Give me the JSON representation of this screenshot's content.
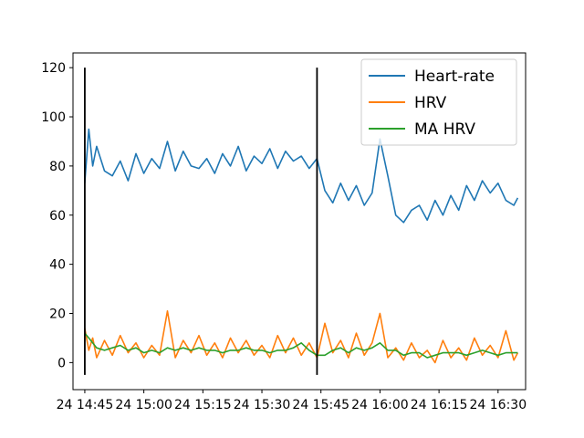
{
  "chart_data": {
    "type": "line",
    "title": "",
    "xlabel": "",
    "ylabel": "",
    "x_domain": [
      "24 14:42",
      "24 16:37"
    ],
    "ylim": [
      -11,
      126
    ],
    "grid": false,
    "legend": {
      "location": "upper right",
      "entries": [
        "Heart-rate",
        "HRV",
        "MA HRV"
      ]
    },
    "x_ticks": [
      {
        "at": "24 14:45",
        "label": "24 14:45"
      },
      {
        "at": "24 15:00",
        "label": "24 15:00"
      },
      {
        "at": "24 15:15",
        "label": "24 15:15"
      },
      {
        "at": "24 15:30",
        "label": "24 15:30"
      },
      {
        "at": "24 15:45",
        "label": "24 15:45"
      },
      {
        "at": "24 16:00",
        "label": "24 16:00"
      },
      {
        "at": "24 16:15",
        "label": "24 16:15"
      },
      {
        "at": "24 16:30",
        "label": "24 16:30"
      }
    ],
    "y_ticks": [
      0,
      20,
      40,
      60,
      80,
      100,
      120
    ],
    "vertical_markers": [
      {
        "x": "24 14:45",
        "ymin": -5,
        "ymax": 120,
        "color": "#000000"
      },
      {
        "x": "24 15:44",
        "ymin": -5,
        "ymax": 120,
        "color": "#000000"
      }
    ],
    "series": [
      {
        "name": "Heart-rate",
        "color": "#1f77b4",
        "x": [
          "24 14:45",
          "24 14:46",
          "24 14:47",
          "24 14:48",
          "24 14:50",
          "24 14:52",
          "24 14:54",
          "24 14:56",
          "24 14:58",
          "24 15:00",
          "24 15:02",
          "24 15:04",
          "24 15:06",
          "24 15:08",
          "24 15:10",
          "24 15:12",
          "24 15:14",
          "24 15:16",
          "24 15:18",
          "24 15:20",
          "24 15:22",
          "24 15:24",
          "24 15:26",
          "24 15:28",
          "24 15:30",
          "24 15:32",
          "24 15:34",
          "24 15:36",
          "24 15:38",
          "24 15:40",
          "24 15:42",
          "24 15:44",
          "24 15:46",
          "24 15:48",
          "24 15:50",
          "24 15:52",
          "24 15:54",
          "24 15:56",
          "24 15:58",
          "24 16:00",
          "24 16:02",
          "24 16:04",
          "24 16:06",
          "24 16:08",
          "24 16:10",
          "24 16:12",
          "24 16:14",
          "24 16:16",
          "24 16:18",
          "24 16:20",
          "24 16:22",
          "24 16:24",
          "24 16:26",
          "24 16:28",
          "24 16:30",
          "24 16:32",
          "24 16:34",
          "24 16:35"
        ],
        "y": [
          73,
          95,
          80,
          88,
          78,
          76,
          82,
          74,
          85,
          77,
          83,
          79,
          90,
          78,
          86,
          80,
          79,
          83,
          77,
          85,
          80,
          88,
          78,
          84,
          81,
          87,
          79,
          86,
          82,
          84,
          79,
          83,
          70,
          65,
          73,
          66,
          72,
          64,
          69,
          91,
          76,
          60,
          57,
          62,
          64,
          58,
          66,
          60,
          68,
          62,
          72,
          66,
          74,
          69,
          73,
          66,
          64,
          67
        ]
      },
      {
        "name": "HRV",
        "color": "#ff7f0e",
        "x": [
          "24 14:45",
          "24 14:46",
          "24 14:47",
          "24 14:48",
          "24 14:50",
          "24 14:52",
          "24 14:54",
          "24 14:56",
          "24 14:58",
          "24 15:00",
          "24 15:02",
          "24 15:04",
          "24 15:06",
          "24 15:08",
          "24 15:10",
          "24 15:12",
          "24 15:14",
          "24 15:16",
          "24 15:18",
          "24 15:20",
          "24 15:22",
          "24 15:24",
          "24 15:26",
          "24 15:28",
          "24 15:30",
          "24 15:32",
          "24 15:34",
          "24 15:36",
          "24 15:38",
          "24 15:40",
          "24 15:42",
          "24 15:44",
          "24 15:46",
          "24 15:48",
          "24 15:50",
          "24 15:52",
          "24 15:54",
          "24 15:56",
          "24 15:58",
          "24 16:00",
          "24 16:02",
          "24 16:04",
          "24 16:06",
          "24 16:08",
          "24 16:10",
          "24 16:12",
          "24 16:14",
          "24 16:16",
          "24 16:18",
          "24 16:20",
          "24 16:22",
          "24 16:24",
          "24 16:26",
          "24 16:28",
          "24 16:30",
          "24 16:32",
          "24 16:34",
          "24 16:35"
        ],
        "y": [
          14,
          5,
          10,
          2,
          9,
          3,
          11,
          4,
          8,
          2,
          7,
          3,
          21,
          2,
          9,
          4,
          11,
          3,
          8,
          2,
          10,
          4,
          9,
          3,
          7,
          2,
          11,
          4,
          10,
          3,
          8,
          2,
          16,
          4,
          9,
          2,
          12,
          3,
          8,
          20,
          2,
          6,
          1,
          8,
          2,
          5,
          0,
          9,
          2,
          6,
          1,
          10,
          3,
          7,
          2,
          13,
          1,
          4
        ]
      },
      {
        "name": "MA HRV",
        "color": "#2ca02c",
        "x": [
          "24 14:45",
          "24 14:46",
          "24 14:47",
          "24 14:48",
          "24 14:50",
          "24 14:52",
          "24 14:54",
          "24 14:56",
          "24 14:58",
          "24 15:00",
          "24 15:02",
          "24 15:04",
          "24 15:06",
          "24 15:08",
          "24 15:10",
          "24 15:12",
          "24 15:14",
          "24 15:16",
          "24 15:18",
          "24 15:20",
          "24 15:22",
          "24 15:24",
          "24 15:26",
          "24 15:28",
          "24 15:30",
          "24 15:32",
          "24 15:34",
          "24 15:36",
          "24 15:38",
          "24 15:40",
          "24 15:42",
          "24 15:44",
          "24 15:46",
          "24 15:48",
          "24 15:50",
          "24 15:52",
          "24 15:54",
          "24 15:56",
          "24 15:58",
          "24 16:00",
          "24 16:02",
          "24 16:04",
          "24 16:06",
          "24 16:08",
          "24 16:10",
          "24 16:12",
          "24 16:14",
          "24 16:16",
          "24 16:18",
          "24 16:20",
          "24 16:22",
          "24 16:24",
          "24 16:26",
          "24 16:28",
          "24 16:30",
          "24 16:32",
          "24 16:34",
          "24 16:35"
        ],
        "y": [
          12,
          10,
          8,
          6,
          5,
          6,
          7,
          5,
          6,
          4,
          5,
          4,
          6,
          5,
          6,
          5,
          6,
          5,
          5,
          4,
          5,
          5,
          6,
          5,
          5,
          4,
          5,
          5,
          6,
          8,
          5,
          3,
          3,
          5,
          6,
          4,
          6,
          5,
          6,
          8,
          5,
          5,
          3,
          4,
          4,
          2,
          3,
          4,
          4,
          4,
          3,
          4,
          5,
          4,
          3,
          4,
          4,
          4
        ]
      }
    ]
  }
}
